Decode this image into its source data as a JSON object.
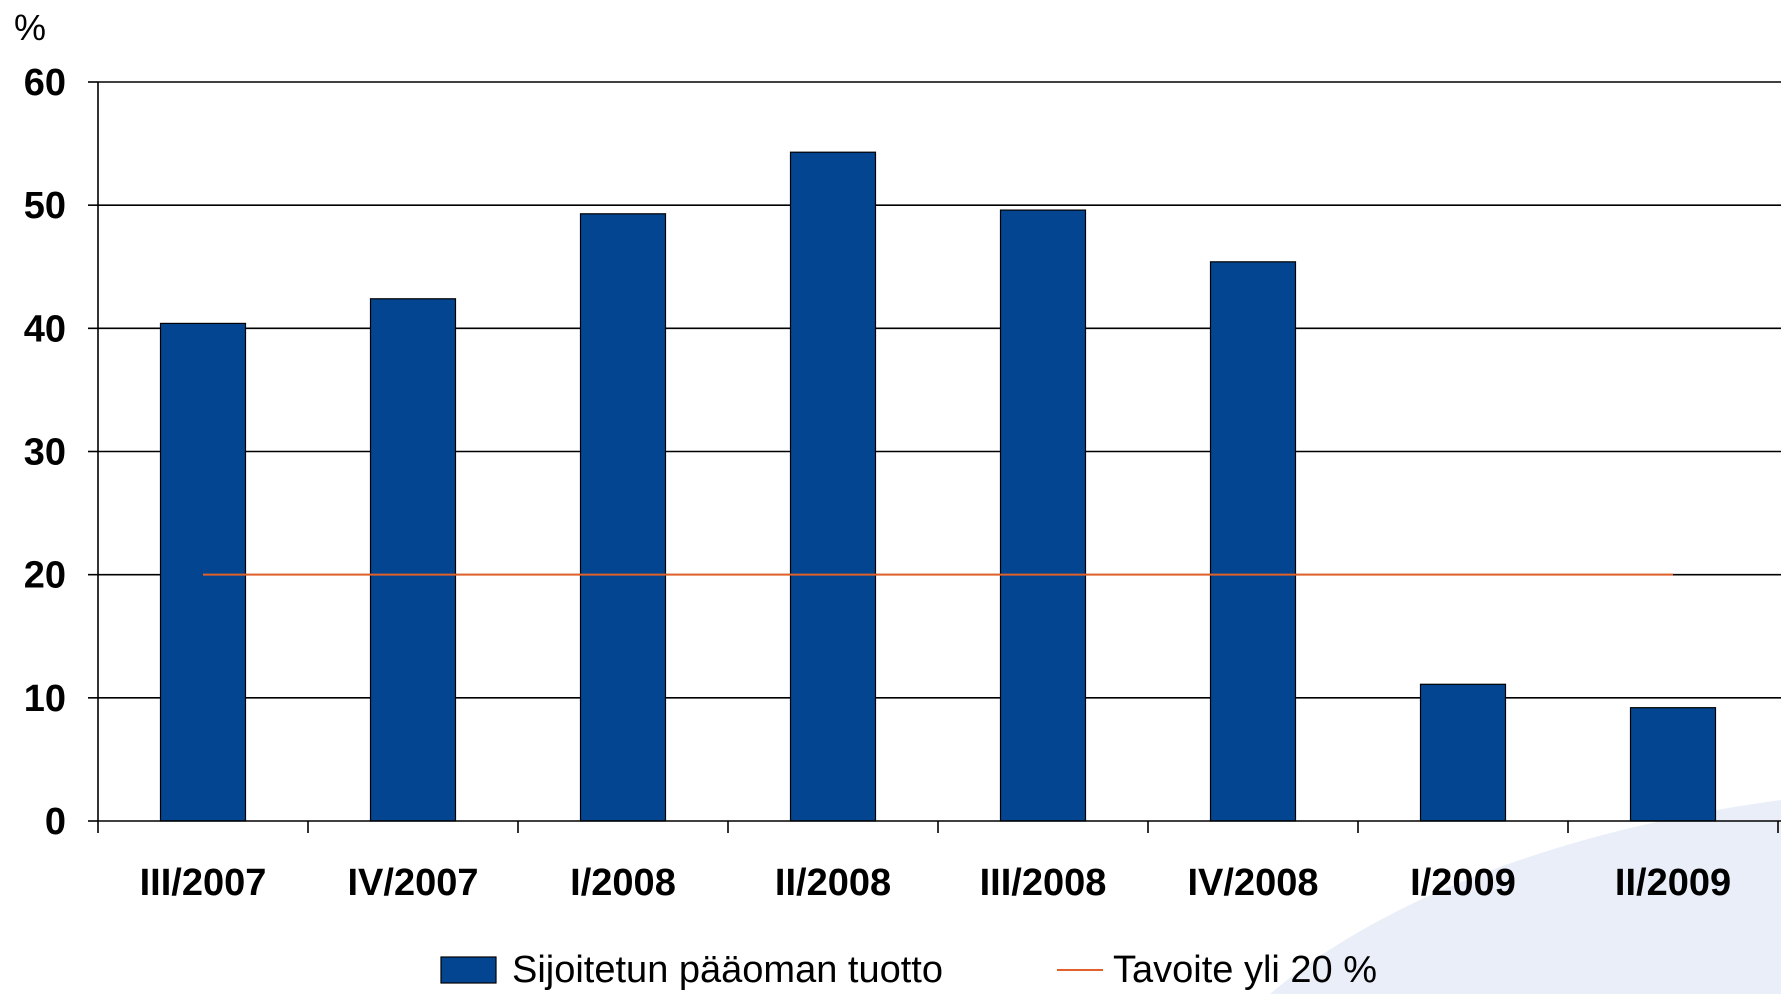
{
  "chart_data": {
    "type": "bar",
    "unit_label": "%",
    "categories": [
      "III/2007",
      "IV/2007",
      "I/2008",
      "II/2008",
      "III/2008",
      "IV/2008",
      "I/2009",
      "II/2009"
    ],
    "series": [
      {
        "name": "Sijoitetun pääoman tuotto",
        "type": "bar",
        "color": "#034591",
        "values": [
          40.4,
          42.4,
          49.3,
          54.3,
          49.6,
          45.4,
          11.1,
          9.2
        ]
      },
      {
        "name": "Tavoite yli 20 %",
        "type": "line",
        "color": "#e0622a",
        "values": [
          20,
          20,
          20,
          20,
          20,
          20,
          20,
          20
        ]
      }
    ],
    "y_ticks": [
      "0",
      "10",
      "20",
      "30",
      "40",
      "50",
      "60"
    ],
    "ylim": [
      0,
      60
    ],
    "grid": true,
    "legend_position": "bottom-center"
  },
  "colors": {
    "bar": "#034591",
    "target_line": "#e0622a",
    "background_swoosh": "#e9eef8"
  }
}
